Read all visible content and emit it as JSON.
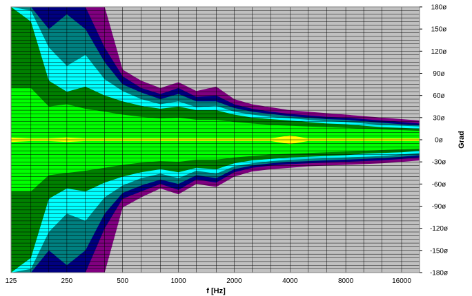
{
  "chart_data": {
    "type": "heatmap",
    "xlabel": "f [Hz]",
    "ylabel": "Grad",
    "x_scale": "log",
    "xlim": [
      125,
      20000
    ],
    "ylim": [
      -180,
      180
    ],
    "x_tick_labels": [
      "125",
      "250",
      "500",
      "1000",
      "2000",
      "4000",
      "8000",
      "16000"
    ],
    "x_tick_values": [
      125,
      250,
      500,
      1000,
      2000,
      4000,
      8000,
      16000
    ],
    "y_tick_labels": [
      "180ø",
      "150ø",
      "120ø",
      "90ø",
      "60ø",
      "30ø",
      "0ø",
      "-30ø",
      "-60ø",
      "-90ø",
      "-120ø",
      "-150ø",
      "-180ø"
    ],
    "y_tick_values": [
      180,
      150,
      120,
      90,
      60,
      30,
      0,
      -30,
      -60,
      -90,
      -120,
      -150,
      -180
    ],
    "grid": true,
    "colors": {
      "background": "#c0c0c0",
      "level1": "#800080",
      "level2": "#000080",
      "level3": "#008080",
      "level4": "#00ffff",
      "level5": "#008000",
      "level6": "#00ff00",
      "level7": "#ffff00",
      "grid": "#000000"
    },
    "contours": {
      "frequencies": [
        125,
        160,
        200,
        250,
        315,
        400,
        500,
        630,
        800,
        1000,
        1250,
        1600,
        2000,
        2500,
        3150,
        4000,
        5000,
        6300,
        8000,
        10000,
        12500,
        16000,
        20000
      ],
      "purple_upper": [
        180,
        180,
        180,
        180,
        180,
        180,
        95,
        80,
        70,
        78,
        66,
        72,
        55,
        48,
        44,
        40,
        38,
        36,
        34,
        32,
        30,
        28,
        26
      ],
      "navy_upper": [
        180,
        180,
        180,
        180,
        180,
        125,
        86,
        70,
        62,
        70,
        58,
        60,
        48,
        42,
        38,
        35,
        33,
        31,
        30,
        28,
        26,
        24,
        22
      ],
      "teal_upper": [
        180,
        180,
        150,
        170,
        150,
        105,
        75,
        64,
        55,
        62,
        52,
        52,
        43,
        38,
        35,
        32,
        30,
        28,
        27,
        25,
        23,
        21,
        20
      ],
      "cyan_upper": [
        180,
        175,
        125,
        100,
        115,
        82,
        66,
        55,
        48,
        52,
        44,
        46,
        38,
        34,
        31,
        29,
        27,
        25,
        24,
        22,
        20,
        19,
        18
      ],
      "darkgreen_upper": [
        180,
        160,
        80,
        65,
        72,
        60,
        52,
        46,
        42,
        45,
        40,
        40,
        34,
        30,
        28,
        26,
        24,
        22,
        21,
        19,
        17,
        16,
        15
      ],
      "green_upper": [
        70,
        70,
        45,
        48,
        42,
        38,
        34,
        31,
        29,
        30,
        27,
        27,
        24,
        22,
        20,
        19,
        18,
        17,
        16,
        15,
        14,
        13,
        12
      ],
      "green_lower": [
        -70,
        -70,
        -48,
        -45,
        -42,
        -38,
        -34,
        -31,
        -29,
        -30,
        -27,
        -27,
        -24,
        -22,
        -20,
        -19,
        -18,
        -17,
        -16,
        -15,
        -14,
        -13,
        -12
      ],
      "darkgreen_lower": [
        -180,
        -160,
        -80,
        -66,
        -70,
        -58,
        -50,
        -44,
        -40,
        -44,
        -38,
        -40,
        -32,
        -28,
        -26,
        -24,
        -23,
        -22,
        -21,
        -19,
        -18,
        -17,
        -15
      ],
      "cyan_lower": [
        -180,
        -175,
        -125,
        -100,
        -110,
        -78,
        -62,
        -52,
        -46,
        -52,
        -42,
        -46,
        -36,
        -32,
        -29,
        -27,
        -26,
        -25,
        -24,
        -23,
        -22,
        -20,
        -18
      ],
      "teal_lower": [
        -180,
        -180,
        -150,
        -170,
        -150,
        -100,
        -72,
        -62,
        -54,
        -60,
        -48,
        -52,
        -40,
        -35,
        -32,
        -30,
        -29,
        -28,
        -27,
        -26,
        -25,
        -23,
        -21
      ],
      "navy_lower": [
        -180,
        -180,
        -180,
        -180,
        -180,
        -120,
        -80,
        -70,
        -60,
        -68,
        -54,
        -58,
        -44,
        -38,
        -35,
        -33,
        -32,
        -31,
        -30,
        -29,
        -28,
        -26,
        -24
      ],
      "purple_lower": [
        -180,
        -180,
        -180,
        -180,
        -180,
        -180,
        -92,
        -78,
        -66,
        -74,
        -60,
        -64,
        -50,
        -43,
        -40,
        -38,
        -36,
        -35,
        -34,
        -33,
        -32,
        -30,
        -28
      ]
    }
  }
}
